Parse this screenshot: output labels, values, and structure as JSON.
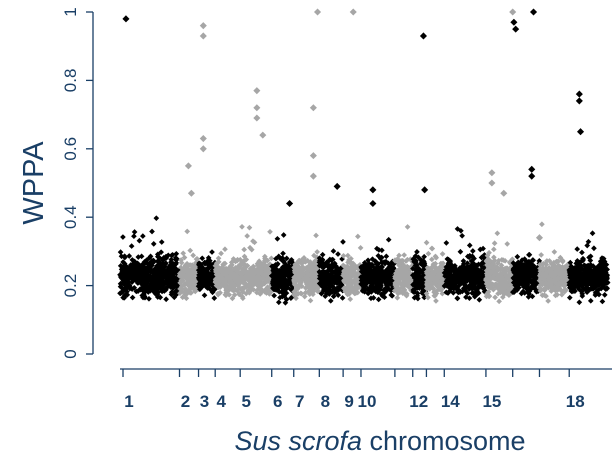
{
  "chart_data": {
    "type": "scatter",
    "ylabel": "WPPA",
    "xlabel_italic": "Sus scrofa",
    "xlabel_rest": " chromosome",
    "ylim": [
      0,
      1
    ],
    "yticks": [
      "0",
      "0.2",
      "0.4",
      "0.6",
      "0.8",
      "1"
    ],
    "chromosomes": [
      {
        "label": "1",
        "start": 0,
        "end": 1.0,
        "color": "#000000"
      },
      {
        "label": "2",
        "start": 1.0,
        "end": 1.32,
        "color": "#a6a6a6"
      },
      {
        "label": "3",
        "start": 1.32,
        "end": 1.6,
        "color": "#000000"
      },
      {
        "label": "4",
        "start": 1.6,
        "end": 2.02,
        "color": "#a6a6a6"
      },
      {
        "label": "5",
        "start": 2.02,
        "end": 2.55,
        "color": "#a6a6a6"
      },
      {
        "label": "6",
        "start": 2.55,
        "end": 2.92,
        "color": "#000000"
      },
      {
        "label": "7",
        "start": 2.92,
        "end": 3.35,
        "color": "#a6a6a6"
      },
      {
        "label": "8",
        "start": 3.35,
        "end": 3.75,
        "color": "#000000"
      },
      {
        "label": "9",
        "start": 3.75,
        "end": 4.05,
        "color": "#a6a6a6"
      },
      {
        "label": "10",
        "start": 4.05,
        "end": 4.62,
        "color": "#000000"
      },
      {
        "label": "",
        "start": 4.62,
        "end": 4.92,
        "color": "#a6a6a6"
      },
      {
        "label": "12",
        "start": 4.92,
        "end": 5.15,
        "color": "#000000"
      },
      {
        "label": "",
        "start": 5.15,
        "end": 5.45,
        "color": "#a6a6a6"
      },
      {
        "label": "14",
        "start": 5.45,
        "end": 6.15,
        "color": "#000000"
      },
      {
        "label": "15",
        "start": 6.15,
        "end": 6.6,
        "color": "#a6a6a6"
      },
      {
        "label": "",
        "start": 6.6,
        "end": 7.05,
        "color": "#000000"
      },
      {
        "label": "",
        "start": 7.05,
        "end": 7.55,
        "color": "#a6a6a6"
      },
      {
        "label": "18",
        "start": 7.55,
        "end": 8.2,
        "color": "#000000"
      }
    ],
    "peaks": [
      {
        "x": 0.1,
        "y": 0.98,
        "color": "#000000"
      },
      {
        "x": 1.15,
        "y": 0.55,
        "color": "#a6a6a6"
      },
      {
        "x": 1.2,
        "y": 0.47,
        "color": "#a6a6a6"
      },
      {
        "x": 1.4,
        "y": 0.96,
        "color": "#a6a6a6"
      },
      {
        "x": 1.4,
        "y": 0.93,
        "color": "#a6a6a6"
      },
      {
        "x": 1.4,
        "y": 0.63,
        "color": "#a6a6a6"
      },
      {
        "x": 1.4,
        "y": 0.6,
        "color": "#a6a6a6"
      },
      {
        "x": 2.3,
        "y": 0.77,
        "color": "#a6a6a6"
      },
      {
        "x": 2.3,
        "y": 0.72,
        "color": "#a6a6a6"
      },
      {
        "x": 2.3,
        "y": 0.69,
        "color": "#a6a6a6"
      },
      {
        "x": 2.4,
        "y": 0.64,
        "color": "#a6a6a6"
      },
      {
        "x": 2.85,
        "y": 0.44,
        "color": "#000000"
      },
      {
        "x": 3.25,
        "y": 0.72,
        "color": "#a6a6a6"
      },
      {
        "x": 3.25,
        "y": 0.58,
        "color": "#a6a6a6"
      },
      {
        "x": 3.25,
        "y": 0.52,
        "color": "#a6a6a6"
      },
      {
        "x": 3.32,
        "y": 1.0,
        "color": "#a6a6a6"
      },
      {
        "x": 3.65,
        "y": 0.49,
        "color": "#000000"
      },
      {
        "x": 3.92,
        "y": 1.0,
        "color": "#a6a6a6"
      },
      {
        "x": 4.25,
        "y": 0.48,
        "color": "#000000"
      },
      {
        "x": 4.25,
        "y": 0.44,
        "color": "#000000"
      },
      {
        "x": 5.1,
        "y": 0.93,
        "color": "#000000"
      },
      {
        "x": 5.12,
        "y": 0.48,
        "color": "#000000"
      },
      {
        "x": 6.25,
        "y": 0.53,
        "color": "#a6a6a6"
      },
      {
        "x": 6.25,
        "y": 0.5,
        "color": "#a6a6a6"
      },
      {
        "x": 6.45,
        "y": 0.47,
        "color": "#a6a6a6"
      },
      {
        "x": 6.6,
        "y": 1.0,
        "color": "#a6a6a6"
      },
      {
        "x": 6.62,
        "y": 0.97,
        "color": "#000000"
      },
      {
        "x": 6.65,
        "y": 0.95,
        "color": "#000000"
      },
      {
        "x": 6.95,
        "y": 1.0,
        "color": "#000000"
      },
      {
        "x": 6.92,
        "y": 0.54,
        "color": "#000000"
      },
      {
        "x": 6.92,
        "y": 0.52,
        "color": "#000000"
      },
      {
        "x": 7.05,
        "y": 0.34,
        "color": "#a6a6a6"
      },
      {
        "x": 7.72,
        "y": 0.76,
        "color": "#000000"
      },
      {
        "x": 7.72,
        "y": 0.74,
        "color": "#000000"
      },
      {
        "x": 7.74,
        "y": 0.65,
        "color": "#000000"
      }
    ]
  }
}
